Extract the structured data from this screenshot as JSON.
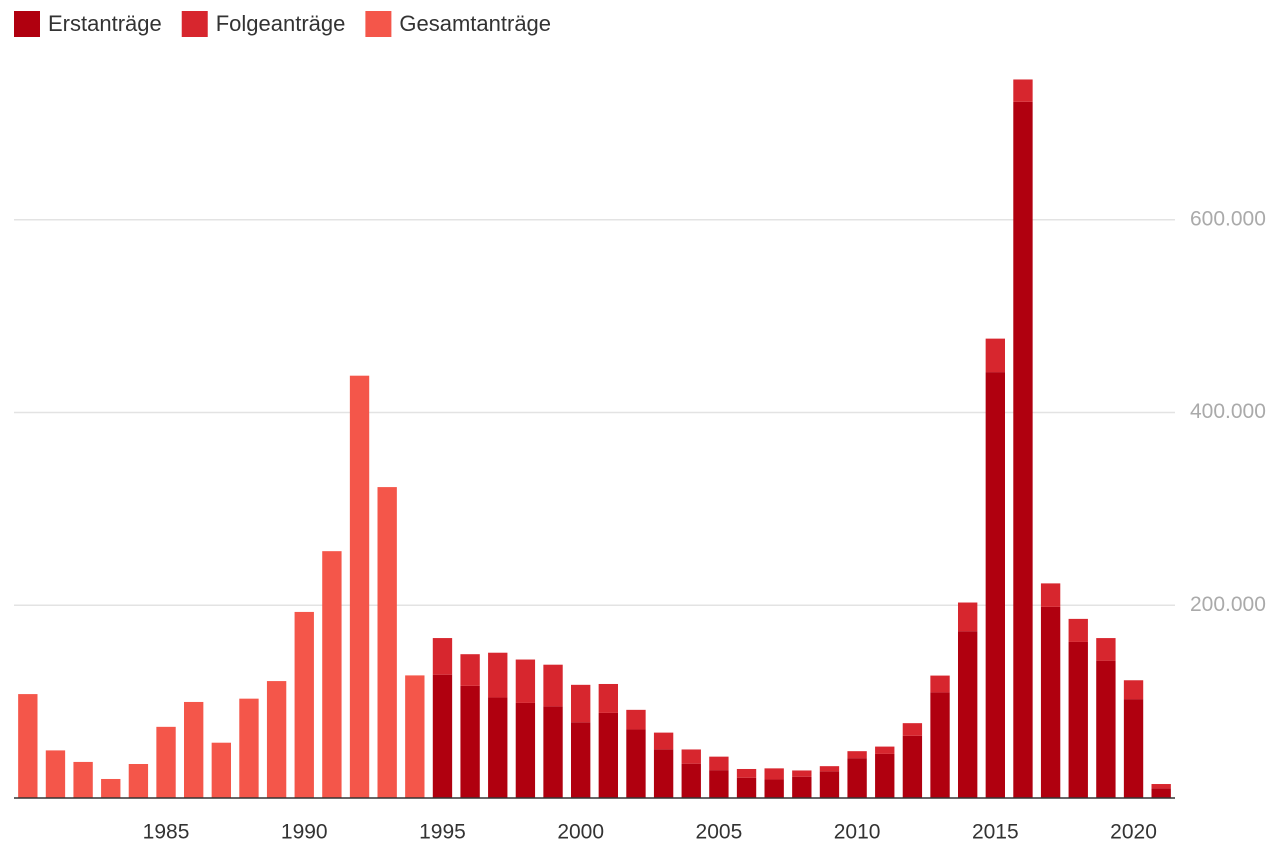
{
  "chart_data": {
    "type": "stacked-bar",
    "x": [
      1980,
      1981,
      1982,
      1983,
      1984,
      1985,
      1986,
      1987,
      1988,
      1989,
      1990,
      1991,
      1992,
      1993,
      1994,
      1995,
      1996,
      1997,
      1998,
      1999,
      2000,
      2001,
      2002,
      2003,
      2004,
      2005,
      2006,
      2007,
      2008,
      2009,
      2010,
      2011,
      2012,
      2013,
      2014,
      2015,
      2016,
      2017,
      2018,
      2019,
      2020,
      2021
    ],
    "series": [
      {
        "name": "Erstanträge",
        "color": "#b0000f",
        "values": [
          null,
          null,
          null,
          null,
          null,
          null,
          null,
          null,
          null,
          null,
          null,
          null,
          null,
          null,
          null,
          127937,
          116367,
          104353,
          98644,
          95113,
          78564,
          88287,
          71127,
          50563,
          35607,
          28914,
          21029,
          19164,
          22085,
          27649,
          41332,
          45741,
          64539,
          109580,
          173072,
          441899,
          722370,
          198317,
          161931,
          142509,
          102581,
          10000
        ]
      },
      {
        "name": "Folgeanträge",
        "color": "#d7262e",
        "values": [
          null,
          null,
          null,
          null,
          null,
          null,
          null,
          null,
          null,
          null,
          null,
          null,
          null,
          null,
          null,
          38014,
          32843,
          46400,
          45028,
          43206,
          38867,
          30019,
          20344,
          17285,
          14752,
          13994,
          9073,
          11584,
          6487,
          5384,
          7257,
          7606,
          13112,
          17443,
          29762,
          34750,
          23175,
          24366,
          23922,
          23429,
          19589,
          4500
        ]
      },
      {
        "name": "Gesamtanträge",
        "color": "#f4564a",
        "values": [
          107818,
          49391,
          37423,
          19737,
          35278,
          73832,
          99650,
          57379,
          103076,
          121318,
          193063,
          256112,
          438191,
          322599,
          127210,
          null,
          null,
          null,
          null,
          null,
          null,
          null,
          null,
          null,
          null,
          null,
          null,
          null,
          null,
          null,
          null,
          null,
          null,
          null,
          null,
          null,
          null,
          null,
          null,
          null,
          null,
          null
        ]
      }
    ],
    "stacked_series": [
      0,
      1
    ],
    "xlim": [
      1979.5,
      2021.5
    ],
    "xticks": [
      1985,
      1990,
      1995,
      2000,
      2005,
      2010,
      2015,
      2020
    ],
    "ylim": [
      0,
      745000
    ],
    "yticks": [
      {
        "value": 200000,
        "label": "200.000"
      },
      {
        "value": 400000,
        "label": "400.000"
      },
      {
        "value": 600000,
        "label": "600.000"
      }
    ],
    "grid": true,
    "legend": "top-left"
  }
}
